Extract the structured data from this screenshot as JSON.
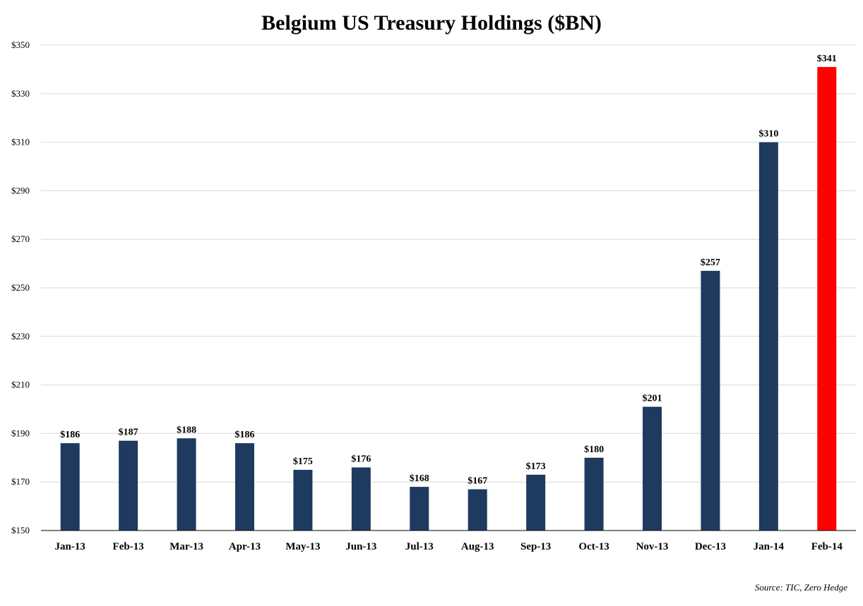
{
  "chart_data": {
    "type": "bar",
    "title": "Belgium US Treasury Holdings ($BN)",
    "xlabel": "",
    "ylabel": "",
    "categories": [
      "Jan-13",
      "Feb-13",
      "Mar-13",
      "Apr-13",
      "May-13",
      "Jun-13",
      "Jul-13",
      "Aug-13",
      "Sep-13",
      "Oct-13",
      "Nov-13",
      "Dec-13",
      "Jan-14",
      "Feb-14"
    ],
    "values": [
      186,
      187,
      188,
      186,
      175,
      176,
      168,
      167,
      173,
      180,
      201,
      257,
      310,
      341
    ],
    "data_labels": [
      "$186",
      "$187",
      "$188",
      "$186",
      "$175",
      "$176",
      "$168",
      "$167",
      "$173",
      "$180",
      "$201",
      "$257",
      "$310",
      "$341"
    ],
    "ylim": [
      150,
      350
    ],
    "y_ticks": [
      150,
      170,
      190,
      210,
      230,
      250,
      270,
      290,
      310,
      330,
      350
    ],
    "y_tick_labels": [
      "$150",
      "$170",
      "$190",
      "$210",
      "$230",
      "$250",
      "$270",
      "$290",
      "$310",
      "$330",
      "$350"
    ],
    "grid": true,
    "legend": "none",
    "colors": {
      "bar": "#1f3a5f",
      "highlight_bar": "#ff0000",
      "gridline": "#d9d9d9"
    },
    "highlight_index": 13,
    "source": "Source: TIC, Zero Hedge"
  }
}
